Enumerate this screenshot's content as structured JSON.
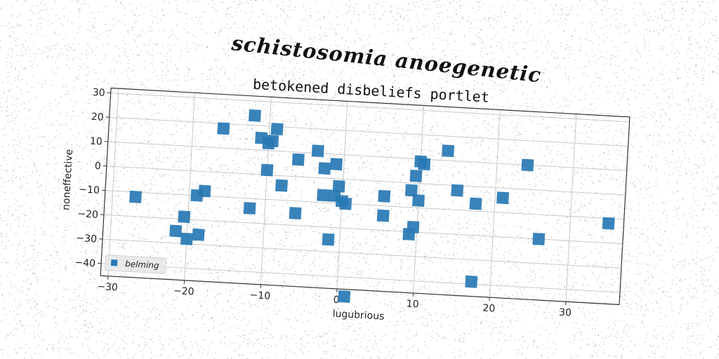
{
  "figure": {
    "title": "schistosomia anoegenetic"
  },
  "colors": {
    "marker": "#2878b5",
    "grid": "#c8c8c8",
    "frame": "#333333"
  },
  "chart_data": {
    "type": "scatter",
    "title": "betokened disbeliefs portlet",
    "xlabel": "lugubrious",
    "ylabel": "noneffective",
    "xlim": [
      -31,
      37
    ],
    "ylim": [
      -45,
      32
    ],
    "xticks": [
      -30,
      -20,
      -10,
      0,
      10,
      20,
      30
    ],
    "yticks": [
      30,
      20,
      10,
      0,
      -10,
      -20,
      -30,
      -40
    ],
    "grid": true,
    "legend": {
      "position": "lower-left"
    },
    "series": [
      {
        "name": "belming",
        "x": [
          -27,
          -21.5,
          -20.5,
          -20,
          -19,
          -18.5,
          -18,
          -16,
          -12,
          -12,
          -11,
          -10,
          -10,
          -9.5,
          -9,
          -8,
          -6,
          -6,
          -3.5,
          -2.5,
          -2.5,
          -1.5,
          -1,
          -1,
          -0.5,
          0,
          0.5,
          1,
          5.5,
          5.5,
          9,
          9,
          9.5,
          9.5,
          10,
          10,
          10.5,
          13.5,
          15,
          17.5,
          17.5,
          21,
          24,
          26,
          35
        ],
        "y": [
          -12,
          -25,
          -19,
          -28,
          -10,
          -26,
          -8,
          18,
          24,
          -14,
          15,
          13,
          2,
          14,
          19,
          -4,
          7,
          -15,
          11,
          4,
          -7,
          -25,
          -7,
          6,
          -3,
          -9,
          -10,
          -48,
          -6,
          -14,
          -3,
          -21,
          3,
          -18,
          -7,
          9,
          8,
          14,
          -2,
          -7,
          -39,
          -4,
          10,
          -20,
          -12
        ]
      }
    ]
  }
}
